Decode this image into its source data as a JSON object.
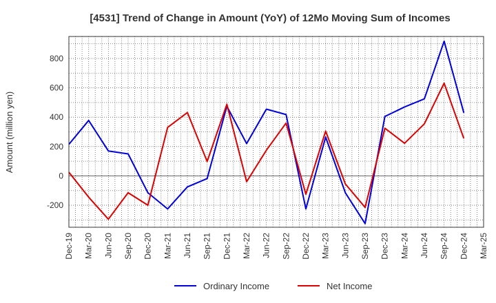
{
  "chart_data": {
    "type": "line",
    "title": "[4531]  Trend of Change in Amount (YoY) of 12Mo Moving Sum of Incomes",
    "ylabel": "Amount (million yen)",
    "xlabel": "",
    "ylim": [
      -350,
      950
    ],
    "yticks": [
      -200,
      0,
      200,
      400,
      600,
      800
    ],
    "x": [
      "Dec-19",
      "Mar-20",
      "Jun-20",
      "Sep-20",
      "Dec-20",
      "Mar-21",
      "Jun-21",
      "Sep-21",
      "Dec-21",
      "Mar-22",
      "Jun-22",
      "Sep-22",
      "Dec-22",
      "Mar-23",
      "Jun-23",
      "Sep-23",
      "Dec-23",
      "Mar-24",
      "Jun-24",
      "Sep-24",
      "Dec-24",
      "Mar-25"
    ],
    "grid": true,
    "legend": "bottom",
    "series": [
      {
        "name": "Ordinary Income",
        "color": "#0000dd",
        "values": [
          215,
          378,
          170,
          150,
          -115,
          -225,
          -75,
          -18,
          475,
          220,
          455,
          418,
          -225,
          265,
          -115,
          -325,
          405,
          470,
          525,
          918,
          430,
          null
        ]
      },
      {
        "name": "Net Income",
        "color": "#dd0000",
        "values": [
          25,
          -145,
          -295,
          -115,
          -200,
          330,
          432,
          98,
          488,
          -40,
          175,
          360,
          -125,
          305,
          -55,
          -215,
          325,
          222,
          355,
          632,
          255,
          null
        ]
      }
    ]
  }
}
